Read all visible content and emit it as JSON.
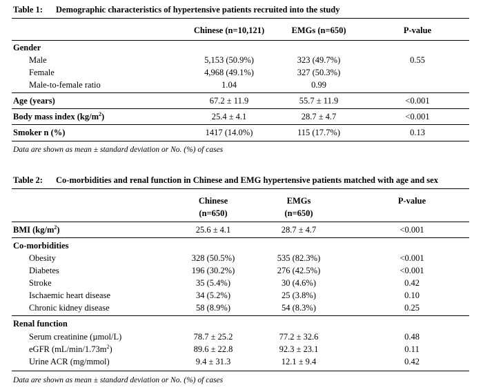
{
  "table1": {
    "number": "Table 1:",
    "title": "Demographic characteristics of hypertensive patients recruited into the study",
    "headers": {
      "col1": "Chinese  (n=10,121)",
      "col2": "EMGs (n=650)",
      "col3": "P-value"
    },
    "rows": [
      {
        "label": "Gender",
        "style": "section",
        "c1": "",
        "c2": "",
        "c3": ""
      },
      {
        "label": "Male",
        "style": "indent",
        "c1": "5,153 (50.9%)",
        "c2": "323 (49.7%)",
        "c3": "0.55"
      },
      {
        "label": "Female",
        "style": "indent",
        "c1": "4,968 (49.1%)",
        "c2": "327 (50.3%)",
        "c3": ""
      },
      {
        "label": "Male-to-female ratio",
        "style": "indent",
        "c1": "1.04",
        "c2": "0.99",
        "c3": ""
      },
      {
        "label": "Age (years)",
        "style": "section",
        "c1": "67.2 ± 11.9",
        "c2": "55.7 ± 11.9",
        "c3": "<0.001"
      },
      {
        "label_pre": "Body mass index (kg/m",
        "label_sup": "2",
        "label_post": ")",
        "style": "section",
        "c1": "25.4 ± 4.1",
        "c2": "28.7 ± 4.7",
        "c3": "<0.001"
      },
      {
        "label": "Smoker n (%)",
        "style": "section",
        "c1": "1417 (14.0%)",
        "c2": "115 (17.7%)",
        "c3": "0.13"
      }
    ],
    "note": "Data are shown as mean ± standard deviation or No. (%) of cases"
  },
  "table2": {
    "number": "Table 2:",
    "title": "Co-morbidities and renal function in Chinese and EMG hypertensive patients matched with age and sex",
    "headers": {
      "col1_a": "Chinese",
      "col1_b": "(n=650)",
      "col2_a": "EMGs",
      "col2_b": "(n=650)",
      "col3": "P-value"
    },
    "rows": [
      {
        "label_pre": "BMI (kg/m",
        "label_sup": "2",
        "label_post": ")",
        "style": "section",
        "c1": "25.6 ± 4.1",
        "c2": "28.7 ± 4.7",
        "c3": "<0.001"
      },
      {
        "label": "Co-morbidities",
        "style": "section",
        "c1": "",
        "c2": "",
        "c3": ""
      },
      {
        "label": "Obesity",
        "style": "indent",
        "c1": "328 (50.5%)",
        "c2": "535 (82.3%)",
        "c3": "<0.001"
      },
      {
        "label": "Diabetes",
        "style": "indent",
        "c1": "196 (30.2%)",
        "c2": "276 (42.5%)",
        "c3": "<0.001"
      },
      {
        "label": "Stroke",
        "style": "indent",
        "c1": "35 (5.4%)",
        "c2": "30 (4.6%)",
        "c3": "0.42"
      },
      {
        "label": "Ischaemic heart disease",
        "style": "indent",
        "c1": "34 (5.2%)",
        "c2": "25 (3.8%)",
        "c3": "0.10"
      },
      {
        "label": "Chronic kidney disease",
        "style": "indent",
        "c1": "58 (8.9%)",
        "c2": "54 (8.3%)",
        "c3": "0.25"
      },
      {
        "label": "Renal function",
        "style": "section",
        "c1": "",
        "c2": "",
        "c3": ""
      },
      {
        "label": "Serum creatinine (µmol/L)",
        "style": "indent",
        "c1": "78.7 ± 25.2",
        "c2": "77.2 ± 32.6",
        "c3": "0.48"
      },
      {
        "label_pre": "eGFR (mL/min/1.73m",
        "label_sup": "2",
        "label_post": ")",
        "style": "indent",
        "c1": "89.6 ± 22.8",
        "c2": "92.3 ± 23.1",
        "c3": "0.11"
      },
      {
        "label": "Urine ACR (mg/mmol)",
        "style": "indent",
        "c1": "9.4 ± 31.3",
        "c2": "12.1 ± 9.4",
        "c3": "0.42"
      }
    ],
    "note": "Data are shown as mean ± standard deviation or No. (%) of cases"
  }
}
